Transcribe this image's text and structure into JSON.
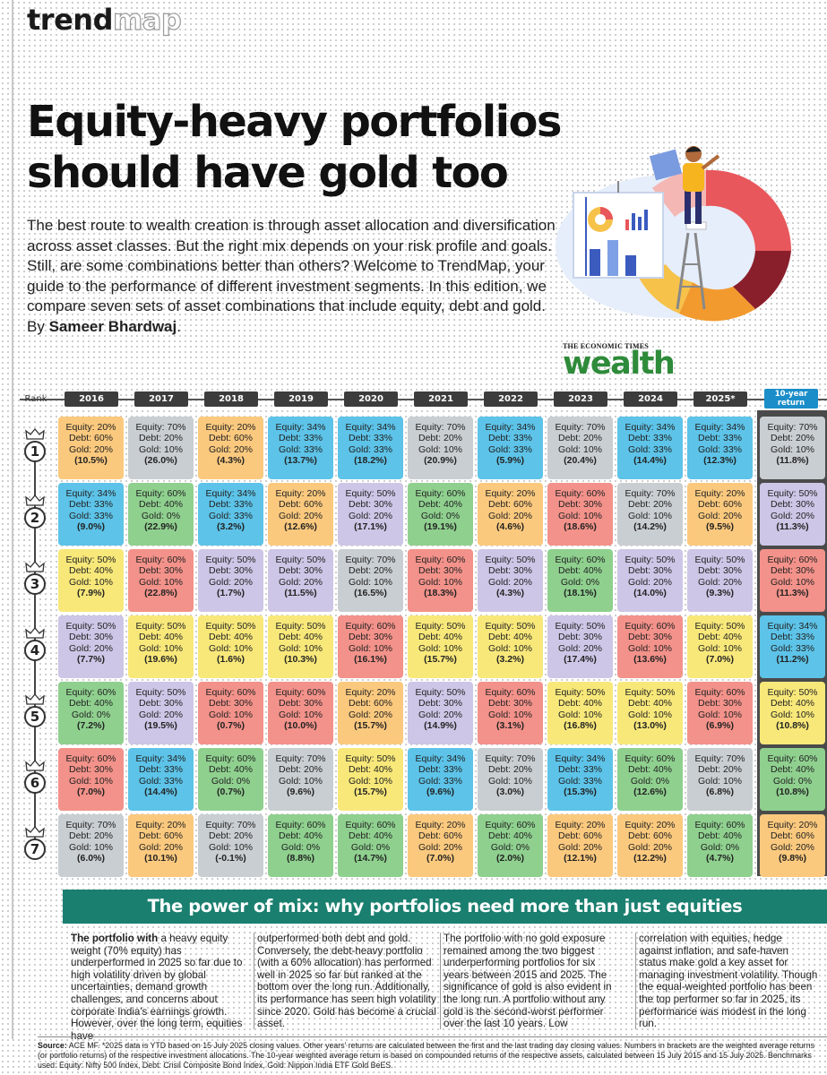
{
  "brand": {
    "part1": "trend",
    "part2": "map"
  },
  "headline": {
    "line1": "Equity-heavy portfolios",
    "line2": "should have gold too"
  },
  "intro": {
    "text": "The best route to wealth creation is through asset allocation and diversification across asset classes. But the right mix depends on your risk profile and goals. Still, are some combinations better than others? Welcome to TrendMap, your guide to the performance of different investment segments. In this edition, we compare seven sets of asset combinations that include equity, debt and gold. By ",
    "author": "Sameer Bhardwaj",
    "end": "."
  },
  "logo": {
    "top": "THE ECONOMIC TIMES",
    "word": "wealth"
  },
  "table": {
    "rank_label": "Rank",
    "years": [
      "2016",
      "2017",
      "2018",
      "2019",
      "2020",
      "2021",
      "2022",
      "2023",
      "2024",
      "2025*"
    ],
    "ten_year_label": [
      "10-year",
      "return"
    ],
    "ranks": [
      "1",
      "2",
      "3",
      "4",
      "5",
      "6",
      "7"
    ],
    "colors": {
      "70-20-10": "#c9ced2",
      "60-40-0": "#8fd08f",
      "60-30-10": "#f3928a",
      "50-40-10": "#f8e87a",
      "50-30-20": "#cdc6e6",
      "34-33-33": "#5dc3e8",
      "20-60-20": "#fbc97e"
    },
    "rows": [
      [
        {
          "e": "Equity: 20%",
          "d": "Debt: 60%",
          "g": "Gold: 20%",
          "r": "(10.5%)",
          "k": "20-60-20"
        },
        {
          "e": "Equity: 70%",
          "d": "Debt: 20%",
          "g": "Gold: 10%",
          "r": "(26.0%)",
          "k": "70-20-10"
        },
        {
          "e": "Equity: 20%",
          "d": "Debt: 60%",
          "g": "Gold: 20%",
          "r": "(4.3%)",
          "k": "20-60-20"
        },
        {
          "e": "Equity: 34%",
          "d": "Debt: 33%",
          "g": "Gold: 33%",
          "r": "(13.7%)",
          "k": "34-33-33"
        },
        {
          "e": "Equity: 34%",
          "d": "Debt: 33%",
          "g": "Gold: 33%",
          "r": "(18.2%)",
          "k": "34-33-33"
        },
        {
          "e": "Equity: 70%",
          "d": "Debt: 20%",
          "g": "Gold: 10%",
          "r": "(20.9%)",
          "k": "70-20-10"
        },
        {
          "e": "Equity: 34%",
          "d": "Debt: 33%",
          "g": "Gold: 33%",
          "r": "(5.9%)",
          "k": "34-33-33"
        },
        {
          "e": "Equity: 70%",
          "d": "Debt: 20%",
          "g": "Gold: 10%",
          "r": "(20.4%)",
          "k": "70-20-10"
        },
        {
          "e": "Equity: 34%",
          "d": "Debt: 33%",
          "g": "Gold: 33%",
          "r": "(14.4%)",
          "k": "34-33-33"
        },
        {
          "e": "Equity: 34%",
          "d": "Debt: 33%",
          "g": "Gold: 33%",
          "r": "(12.3%)",
          "k": "34-33-33"
        },
        {
          "e": "Equity: 70%",
          "d": "Debt: 20%",
          "g": "Gold: 10%",
          "r": "(11.8%)",
          "k": "70-20-10"
        }
      ],
      [
        {
          "e": "Equity: 34%",
          "d": "Debt: 33%",
          "g": "Gold: 33%",
          "r": "(9.0%)",
          "k": "34-33-33"
        },
        {
          "e": "Equity: 60%",
          "d": "Debt: 40%",
          "g": "Gold: 0%",
          "r": "(22.9%)",
          "k": "60-40-0"
        },
        {
          "e": "Equity: 34%",
          "d": "Debt: 33%",
          "g": "Gold: 33%",
          "r": "(3.2%)",
          "k": "34-33-33"
        },
        {
          "e": "Equity: 20%",
          "d": "Debt: 60%",
          "g": "Gold: 20%",
          "r": "(12.6%)",
          "k": "20-60-20"
        },
        {
          "e": "Equity: 50%",
          "d": "Debt: 30%",
          "g": "Gold: 20%",
          "r": "(17.1%)",
          "k": "50-30-20"
        },
        {
          "e": "Equity: 60%",
          "d": "Debt: 40%",
          "g": "Gold: 0%",
          "r": "(19.1%)",
          "k": "60-40-0"
        },
        {
          "e": "Equity: 20%",
          "d": "Debt: 60%",
          "g": "Gold: 20%",
          "r": "(4.6%)",
          "k": "20-60-20"
        },
        {
          "e": "Equity: 60%",
          "d": "Debt: 30%",
          "g": "Gold: 10%",
          "r": "(18.6%)",
          "k": "60-30-10"
        },
        {
          "e": "Equity: 70%",
          "d": "Debt: 20%",
          "g": "Gold: 10%",
          "r": "(14.2%)",
          "k": "70-20-10"
        },
        {
          "e": "Equity: 20%",
          "d": "Debt: 60%",
          "g": "Gold: 20%",
          "r": "(9.5%)",
          "k": "20-60-20"
        },
        {
          "e": "Equity: 50%",
          "d": "Debt: 30%",
          "g": "Gold: 20%",
          "r": "(11.3%)",
          "k": "50-30-20"
        }
      ],
      [
        {
          "e": "Equity: 50%",
          "d": "Debt: 40%",
          "g": "Gold: 10%",
          "r": "(7.9%)",
          "k": "50-40-10"
        },
        {
          "e": "Equity: 60%",
          "d": "Debt: 30%",
          "g": "Gold: 10%",
          "r": "(22.8%)",
          "k": "60-30-10"
        },
        {
          "e": "Equity: 50%",
          "d": "Debt: 30%",
          "g": "Gold: 20%",
          "r": "(1.7%)",
          "k": "50-30-20"
        },
        {
          "e": "Equity: 50%",
          "d": "Debt: 30%",
          "g": "Gold: 20%",
          "r": "(11.5%)",
          "k": "50-30-20"
        },
        {
          "e": "Equity: 70%",
          "d": "Debt: 20%",
          "g": "Gold: 10%",
          "r": "(16.5%)",
          "k": "70-20-10"
        },
        {
          "e": "Equity: 60%",
          "d": "Debt: 30%",
          "g": "Gold: 10%",
          "r": "(18.3%)",
          "k": "60-30-10"
        },
        {
          "e": "Equity: 50%",
          "d": "Debt: 30%",
          "g": "Gold: 20%",
          "r": "(4.3%)",
          "k": "50-30-20"
        },
        {
          "e": "Equity: 60%",
          "d": "Debt: 40%",
          "g": "Gold: 0%",
          "r": "(18.1%)",
          "k": "60-40-0"
        },
        {
          "e": "Equity: 50%",
          "d": "Debt: 30%",
          "g": "Gold: 20%",
          "r": "(14.0%)",
          "k": "50-30-20"
        },
        {
          "e": "Equity: 50%",
          "d": "Debt: 30%",
          "g": "Gold: 20%",
          "r": "(9.3%)",
          "k": "50-30-20"
        },
        {
          "e": "Equity: 60%",
          "d": "Debt: 30%",
          "g": "Gold: 10%",
          "r": "(11.3%)",
          "k": "60-30-10"
        }
      ],
      [
        {
          "e": "Equity: 50%",
          "d": "Debt: 30%",
          "g": "Gold: 20%",
          "r": "(7.7%)",
          "k": "50-30-20"
        },
        {
          "e": "Equity: 50%",
          "d": "Debt: 40%",
          "g": "Gold: 10%",
          "r": "(19.6%)",
          "k": "50-40-10"
        },
        {
          "e": "Equity: 50%",
          "d": "Debt: 40%",
          "g": "Gold: 10%",
          "r": "(1.6%)",
          "k": "50-40-10"
        },
        {
          "e": "Equity: 50%",
          "d": "Debt: 40%",
          "g": "Gold: 10%",
          "r": "(10.3%)",
          "k": "50-40-10"
        },
        {
          "e": "Equity: 60%",
          "d": "Debt: 30%",
          "g": "Gold: 10%",
          "r": "(16.1%)",
          "k": "60-30-10"
        },
        {
          "e": "Equity: 50%",
          "d": "Debt: 40%",
          "g": "Gold: 10%",
          "r": "(15.7%)",
          "k": "50-40-10"
        },
        {
          "e": "Equity: 50%",
          "d": "Debt: 40%",
          "g": "Gold: 10%",
          "r": "(3.2%)",
          "k": "50-40-10"
        },
        {
          "e": "Equity: 50%",
          "d": "Debt: 30%",
          "g": "Gold: 20%",
          "r": "(17.4%)",
          "k": "50-30-20"
        },
        {
          "e": "Equity: 60%",
          "d": "Debt: 30%",
          "g": "Gold: 10%",
          "r": "(13.6%)",
          "k": "60-30-10"
        },
        {
          "e": "Equity: 50%",
          "d": "Debt: 40%",
          "g": "Gold: 10%",
          "r": "(7.0%)",
          "k": "50-40-10"
        },
        {
          "e": "Equity: 34%",
          "d": "Debt: 33%",
          "g": "Gold: 33%",
          "r": "(11.2%)",
          "k": "34-33-33"
        }
      ],
      [
        {
          "e": "Equity: 60%",
          "d": "Debt: 40%",
          "g": "Gold: 0%",
          "r": "(7.2%)",
          "k": "60-40-0"
        },
        {
          "e": "Equity: 50%",
          "d": "Debt: 30%",
          "g": "Gold: 20%",
          "r": "(19.5%)",
          "k": "50-30-20"
        },
        {
          "e": "Equity: 60%",
          "d": "Debt: 30%",
          "g": "Gold: 10%",
          "r": "(0.7%)",
          "k": "60-30-10"
        },
        {
          "e": "Equity: 60%",
          "d": "Debt: 30%",
          "g": "Gold: 10%",
          "r": "(10.0%)",
          "k": "60-30-10"
        },
        {
          "e": "Equity: 20%",
          "d": "Debt: 60%",
          "g": "Gold: 20%",
          "r": "(15.7%)",
          "k": "20-60-20"
        },
        {
          "e": "Equity: 50%",
          "d": "Debt: 30%",
          "g": "Gold: 20%",
          "r": "(14.9%)",
          "k": "50-30-20"
        },
        {
          "e": "Equity: 60%",
          "d": "Debt: 30%",
          "g": "Gold: 10%",
          "r": "(3.1%)",
          "k": "60-30-10"
        },
        {
          "e": "Equity: 50%",
          "d": "Debt: 40%",
          "g": "Gold: 10%",
          "r": "(16.8%)",
          "k": "50-40-10"
        },
        {
          "e": "Equity: 50%",
          "d": "Debt: 40%",
          "g": "Gold: 10%",
          "r": "(13.0%)",
          "k": "50-40-10"
        },
        {
          "e": "Equity: 60%",
          "d": "Debt: 30%",
          "g": "Gold: 10%",
          "r": "(6.9%)",
          "k": "60-30-10"
        },
        {
          "e": "Equity: 50%",
          "d": "Debt: 40%",
          "g": "Gold: 10%",
          "r": "(10.8%)",
          "k": "50-40-10"
        }
      ],
      [
        {
          "e": "Equity: 60%",
          "d": "Debt: 30%",
          "g": "Gold: 10%",
          "r": "(7.0%)",
          "k": "60-30-10"
        },
        {
          "e": "Equity: 34%",
          "d": "Debt: 33%",
          "g": "Gold: 33%",
          "r": "(14.4%)",
          "k": "34-33-33"
        },
        {
          "e": "Equity: 60%",
          "d": "Debt: 40%",
          "g": "Gold: 0%",
          "r": "(0.7%)",
          "k": "60-40-0"
        },
        {
          "e": "Equity: 70%",
          "d": "Debt: 20%",
          "g": "Gold: 10%",
          "r": "(9.6%)",
          "k": "70-20-10"
        },
        {
          "e": "Equity: 50%",
          "d": "Debt: 40%",
          "g": "Gold: 10%",
          "r": "(15.7%)",
          "k": "50-40-10"
        },
        {
          "e": "Equity: 34%",
          "d": "Debt: 33%",
          "g": "Gold: 33%",
          "r": "(9.6%)",
          "k": "34-33-33"
        },
        {
          "e": "Equity: 70%",
          "d": "Debt: 20%",
          "g": "Gold: 10%",
          "r": "(3.0%)",
          "k": "70-20-10"
        },
        {
          "e": "Equity: 34%",
          "d": "Debt: 33%",
          "g": "Gold: 33%",
          "r": "(15.3%)",
          "k": "34-33-33"
        },
        {
          "e": "Equity: 60%",
          "d": "Debt: 40%",
          "g": "Gold: 0%",
          "r": "(12.6%)",
          "k": "60-40-0"
        },
        {
          "e": "Equity: 70%",
          "d": "Debt: 20%",
          "g": "Gold: 10%",
          "r": "(6.8%)",
          "k": "70-20-10"
        },
        {
          "e": "Equity: 60%",
          "d": "Debt: 40%",
          "g": "Gold: 0%",
          "r": "(10.8%)",
          "k": "60-40-0"
        }
      ],
      [
        {
          "e": "Equity: 70%",
          "d": "Debt: 20%",
          "g": "Gold: 10%",
          "r": "(6.0%)",
          "k": "70-20-10"
        },
        {
          "e": "Equity: 20%",
          "d": "Debt: 60%",
          "g": "Gold: 20%",
          "r": "(10.1%)",
          "k": "20-60-20"
        },
        {
          "e": "Equity: 70%",
          "d": "Debt: 20%",
          "g": "Gold: 10%",
          "r": "(-0.1%)",
          "k": "70-20-10"
        },
        {
          "e": "Equity: 60%",
          "d": "Debt: 40%",
          "g": "Gold: 0%",
          "r": "(8.8%)",
          "k": "60-40-0"
        },
        {
          "e": "Equity: 60%",
          "d": "Debt: 40%",
          "g": "Gold: 0%",
          "r": "(14.7%)",
          "k": "60-40-0"
        },
        {
          "e": "Equity: 20%",
          "d": "Debt: 60%",
          "g": "Gold: 20%",
          "r": "(7.0%)",
          "k": "20-60-20"
        },
        {
          "e": "Equity: 60%",
          "d": "Debt: 40%",
          "g": "Gold: 0%",
          "r": "(2.0%)",
          "k": "60-40-0"
        },
        {
          "e": "Equity: 20%",
          "d": "Debt: 60%",
          "g": "Gold: 20%",
          "r": "(12.1%)",
          "k": "20-60-20"
        },
        {
          "e": "Equity: 20%",
          "d": "Debt: 60%",
          "g": "Gold: 20%",
          "r": "(12.2%)",
          "k": "20-60-20"
        },
        {
          "e": "Equity: 60%",
          "d": "Debt: 40%",
          "g": "Gold: 0%",
          "r": "(4.7%)",
          "k": "60-40-0"
        },
        {
          "e": "Equity: 20%",
          "d": "Debt: 60%",
          "g": "Gold: 20%",
          "r": "(9.8%)",
          "k": "20-60-20"
        }
      ]
    ]
  },
  "banner": "The power of mix: why portfolios need more than just equities",
  "columns": {
    "c1_lead": "The portfolio with",
    "c1": " a heavy equity weight (70% equity) has underperformed in 2025 so far due to high volatility driven by global uncertainties, demand growth challenges, and concerns about corporate India's earnings growth. However, over the long term, equities have",
    "c2": "outperformed both debt and gold. Conversely, the debt-heavy portfolio (with a 60% allocation) has performed well in 2025 so far but ranked at the bottom over the long run. Additionally, its performance has seen high volatility since 2020. Gold has become a crucial asset.",
    "c3": "The portfolio with no gold exposure remained among the two biggest underperforming portfolios for six years between 2015 and 2025. The significance of gold is also evident in the long run. A portfolio without any gold is the second-worst performer over the last 10 years. Low",
    "c4": "correlation with equities, hedge against inflation, and safe-haven status make gold a key asset for managing investment volatility. Though the equal-weighted portfolio has been the top performer so far in 2025, its performance was modest in the long run."
  },
  "source": {
    "label": "Source:",
    "text": " ACE MF. *2025 data is YTD based on 15 July 2025 closing values. Other years' returns are calculated between the first and the last trading day closing values. Numbers in brackets are the weighted average returns (or portfolio returns) of the respective investment allocations. The 10-year weighted average return is based on compounded returns of the respective assets, calculated between 15 July 2015 and 15 July 2025. Benchmarks used: Equity: Nifty 500 Index, Debt: Crisil Composite Bond Index, Gold: Nippon India ETF Gold BeES."
  }
}
